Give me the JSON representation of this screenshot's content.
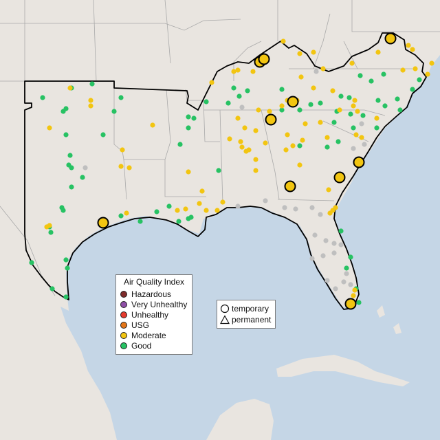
{
  "colors": {
    "water": "#c5d6e6",
    "land": "#ece8e4",
    "land_outside": "#e5e1dc",
    "border": "#a9a9a9",
    "region_outline": "#000000"
  },
  "aqi_legend": {
    "title": "Air Quality Index",
    "items": [
      {
        "label": "Hazardous",
        "color": "#7e2b2b"
      },
      {
        "label": "Very Unhealthy",
        "color": "#8e4ea6"
      },
      {
        "label": "Unhealthy",
        "color": "#e43a2c"
      },
      {
        "label": "USG",
        "color": "#e27518"
      },
      {
        "label": "Moderate",
        "color": "#f2c511"
      },
      {
        "label": "Good",
        "color": "#27c263"
      }
    ]
  },
  "type_legend": {
    "items": [
      {
        "label": "temporary",
        "symbol": "circle-icon"
      },
      {
        "label": "permanent",
        "symbol": "triangle-icon"
      }
    ]
  }
}
